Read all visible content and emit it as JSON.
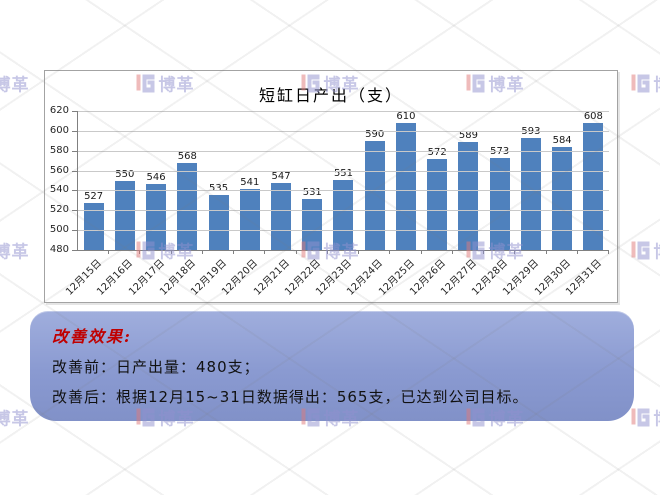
{
  "chart_data": {
    "type": "bar",
    "title": "短缸日产出（支）",
    "categories": [
      "12月15日",
      "12月16日",
      "12月17日",
      "12月18日",
      "12月19日",
      "12月20日",
      "12月21日",
      "12月22日",
      "12月23日",
      "12月24日",
      "12月25日",
      "12月26日",
      "12月27日",
      "12月28日",
      "12月29日",
      "12月30日",
      "12月31日"
    ],
    "values": [
      527,
      550,
      546,
      568,
      535,
      541,
      547,
      531,
      551,
      590,
      610,
      572,
      589,
      573,
      593,
      584,
      608
    ],
    "ylim": [
      480,
      620
    ],
    "ytick_interval": 20,
    "xlabel": "",
    "ylabel": "",
    "grid": true,
    "data_labels": true,
    "legend": "none",
    "bar_color": "#4f81bd",
    "gridline_color": "#c9c9c9",
    "axis_color": "#808080"
  },
  "note": {
    "heading": "改善效果:",
    "lines": [
      "改善前：日产出量：480支；",
      "改善后：根据12月15~31日数据得出：565支，已达到公司目标。"
    ],
    "heading_color": "#c00000",
    "box_color_top": "#a0aedd",
    "box_color_bottom": "#8191c8"
  },
  "watermark": {
    "brand_text": "博革",
    "text_color": "#9191cf",
    "icon_red": "#e07a7a",
    "icon_purple": "#9191cf",
    "grid_cols": [
      0,
      165,
      330,
      495,
      660
    ],
    "grid_rows": [
      83,
      250,
      417
    ]
  }
}
